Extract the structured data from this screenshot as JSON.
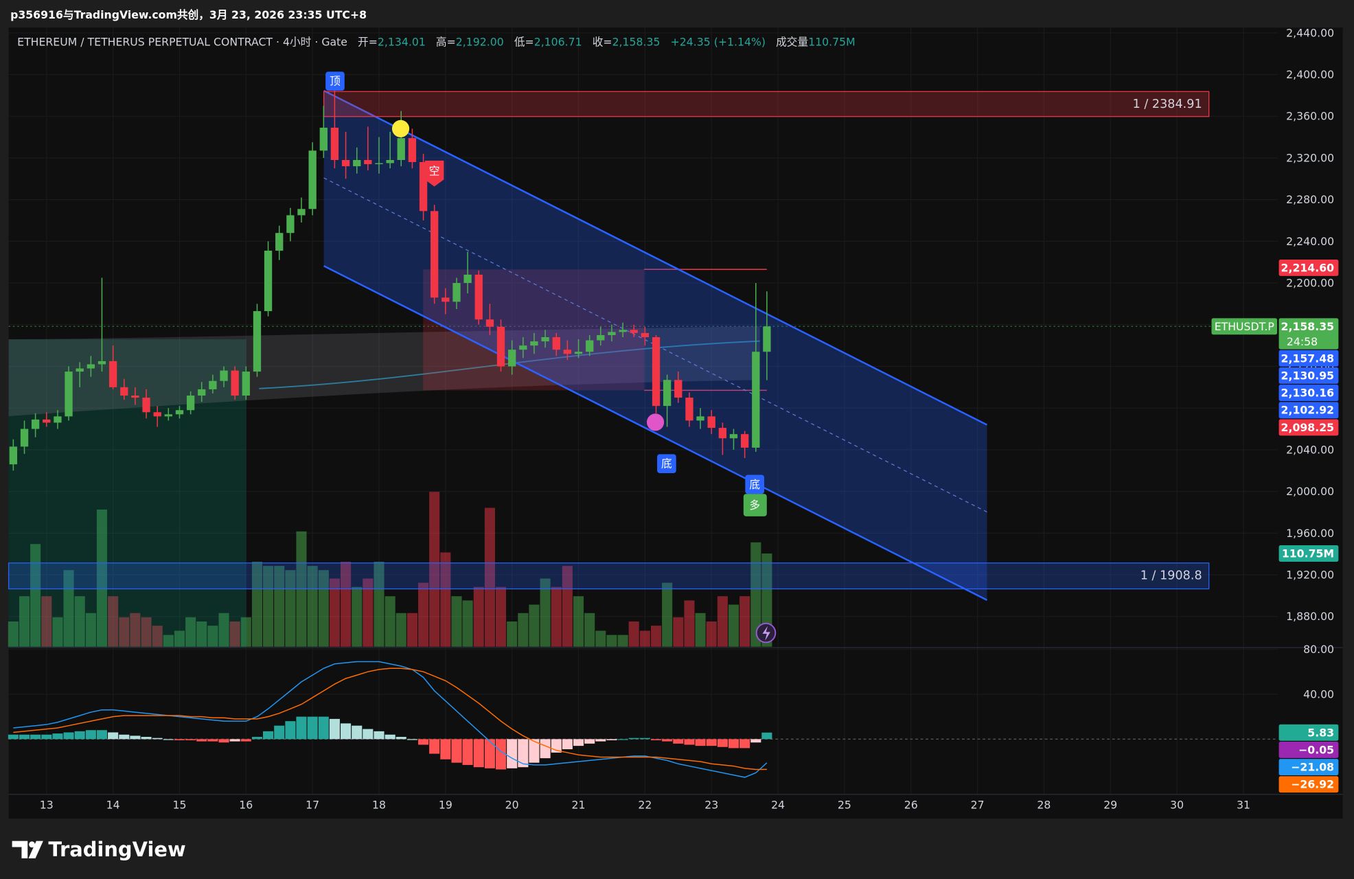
{
  "chart_data": {
    "type": "candlestick",
    "header": "p356916与TradingView.com共创，3月 23, 2026 23:35 UTC+8",
    "title": "ETHEREUM / TETHERUS PERPETUAL CONTRACT · 4小时 · Gate",
    "legend": [
      {
        "label": "开=",
        "value": "2,134.01"
      },
      {
        "label": "高=",
        "value": "2,192.00"
      },
      {
        "label": "低=",
        "value": "2,106.71"
      },
      {
        "label": "收=",
        "value": "2,158.35"
      }
    ],
    "change": "+24.35 (+1.14%)",
    "volume_legend": {
      "label": "成交量",
      "value": "110.75M"
    },
    "up_color": "#4caf50",
    "down_color": "#f23645",
    "x": [
      12.5,
      12.667,
      12.833,
      13,
      13.167,
      13.333,
      13.5,
      13.667,
      13.833,
      14,
      14.167,
      14.333,
      14.5,
      14.667,
      14.833,
      15,
      15.167,
      15.333,
      15.5,
      15.667,
      15.833,
      16,
      16.167,
      16.333,
      16.5,
      16.667,
      16.833,
      17,
      17.167,
      17.333,
      17.5,
      17.667,
      17.833,
      18,
      18.167,
      18.333,
      18.5,
      18.667,
      18.833,
      19,
      19.167,
      19.333,
      19.5,
      19.667,
      19.833,
      20,
      20.167,
      20.333,
      20.5,
      20.667,
      20.833,
      21,
      21.167,
      21.333,
      21.5,
      21.667,
      21.833,
      22,
      22.167,
      22.333,
      22.5,
      22.667,
      22.833,
      23,
      23.167,
      23.333,
      23.5,
      23.667,
      23.833
    ],
    "xlim": [
      12.43,
      31.52
    ],
    "xticks": [
      13,
      14,
      15,
      16,
      17,
      18,
      19,
      20,
      21,
      22,
      23,
      24,
      25,
      26,
      27,
      28,
      29,
      30,
      31
    ],
    "ohlc": [
      [
        2026,
        2050,
        2020,
        2043
      ],
      [
        2043,
        2068,
        2036,
        2060
      ],
      [
        2060,
        2075,
        2052,
        2069
      ],
      [
        2069,
        2076,
        2062,
        2066
      ],
      [
        2066,
        2078,
        2060,
        2072
      ],
      [
        2072,
        2120,
        2068,
        2115
      ],
      [
        2115,
        2124,
        2100,
        2118
      ],
      [
        2118,
        2130,
        2110,
        2122
      ],
      [
        2122,
        2205,
        2115,
        2125
      ],
      [
        2125,
        2140,
        2098,
        2100
      ],
      [
        2100,
        2108,
        2088,
        2092
      ],
      [
        2092,
        2100,
        2083,
        2090
      ],
      [
        2090,
        2098,
        2070,
        2076
      ],
      [
        2076,
        2082,
        2062,
        2072
      ],
      [
        2072,
        2080,
        2068,
        2074
      ],
      [
        2074,
        2082,
        2070,
        2078
      ],
      [
        2078,
        2096,
        2074,
        2092
      ],
      [
        2092,
        2105,
        2086,
        2098
      ],
      [
        2098,
        2112,
        2094,
        2106
      ],
      [
        2106,
        2120,
        2100,
        2116
      ],
      [
        2116,
        2120,
        2088,
        2092
      ],
      [
        2092,
        2120,
        2088,
        2115
      ],
      [
        2115,
        2180,
        2110,
        2173
      ],
      [
        2173,
        2240,
        2168,
        2231
      ],
      [
        2231,
        2255,
        2222,
        2248
      ],
      [
        2248,
        2272,
        2240,
        2265
      ],
      [
        2265,
        2282,
        2258,
        2271
      ],
      [
        2271,
        2335,
        2265,
        2327
      ],
      [
        2327,
        2370,
        2320,
        2349
      ],
      [
        2349,
        2385,
        2310,
        2318
      ],
      [
        2318,
        2345,
        2300,
        2312
      ],
      [
        2312,
        2330,
        2305,
        2318
      ],
      [
        2318,
        2350,
        2308,
        2314
      ],
      [
        2314,
        2340,
        2305,
        2315
      ],
      [
        2315,
        2345,
        2310,
        2318
      ],
      [
        2318,
        2365,
        2312,
        2339
      ],
      [
        2339,
        2348,
        2310,
        2316
      ],
      [
        2316,
        2324,
        2260,
        2269
      ],
      [
        2269,
        2275,
        2180,
        2186
      ],
      [
        2186,
        2195,
        2170,
        2182
      ],
      [
        2182,
        2205,
        2175,
        2200
      ],
      [
        2200,
        2230,
        2190,
        2208
      ],
      [
        2208,
        2212,
        2160,
        2165
      ],
      [
        2165,
        2180,
        2150,
        2158
      ],
      [
        2158,
        2165,
        2115,
        2120
      ],
      [
        2120,
        2145,
        2112,
        2136
      ],
      [
        2136,
        2148,
        2128,
        2140
      ],
      [
        2140,
        2152,
        2132,
        2144
      ],
      [
        2144,
        2155,
        2138,
        2148
      ],
      [
        2148,
        2152,
        2130,
        2136
      ],
      [
        2136,
        2145,
        2126,
        2132
      ],
      [
        2132,
        2146,
        2128,
        2134
      ],
      [
        2134,
        2150,
        2130,
        2145
      ],
      [
        2145,
        2158,
        2140,
        2150
      ],
      [
        2150,
        2160,
        2144,
        2153
      ],
      [
        2153,
        2162,
        2148,
        2155
      ],
      [
        2155,
        2160,
        2148,
        2152
      ],
      [
        2152,
        2158,
        2140,
        2148
      ],
      [
        2148,
        2150,
        2075,
        2082
      ],
      [
        2082,
        2112,
        2062,
        2107
      ],
      [
        2107,
        2115,
        2085,
        2090
      ],
      [
        2090,
        2095,
        2062,
        2068
      ],
      [
        2068,
        2080,
        2060,
        2072
      ],
      [
        2072,
        2078,
        2055,
        2061
      ],
      [
        2061,
        2066,
        2035,
        2051
      ],
      [
        2051,
        2060,
        2040,
        2055
      ],
      [
        2055,
        2058,
        2032,
        2042
      ],
      [
        2042,
        2200,
        2038,
        2134
      ],
      [
        2134.01,
        2192,
        2106.71,
        2158.35
      ]
    ],
    "ylim": [
      1851,
      2445
    ],
    "yticks": [
      {
        "value": 2440,
        "label": "2,440.00"
      },
      {
        "value": 2400,
        "label": "2,400.00"
      },
      {
        "value": 2360,
        "label": "2,360.00"
      },
      {
        "value": 2320,
        "label": "2,320.00"
      },
      {
        "value": 2280,
        "label": "2,280.00"
      },
      {
        "value": 2240,
        "label": "2,240.00"
      },
      {
        "value": 2200,
        "label": "2,200.00"
      },
      {
        "value": 2160,
        "label": "2,160.00"
      },
      {
        "value": 2120,
        "label": "2,120.00"
      },
      {
        "value": 2080,
        "label": "2,080.00"
      },
      {
        "value": 2040,
        "label": "2,040.00"
      },
      {
        "value": 2000,
        "label": "2,000.00"
      },
      {
        "value": 1960,
        "label": "1,960.00"
      },
      {
        "value": 1920,
        "label": "1,920.00"
      },
      {
        "value": 1880,
        "label": "1,880.00"
      }
    ],
    "price_badges": [
      {
        "value": 2214.6,
        "label": "2,214.60",
        "color": "#f23645"
      },
      {
        "value": 2158.35,
        "label": "2,158.35",
        "name": "ETHUSDT.P",
        "countdown": "24:58",
        "color": "#4caf50"
      },
      {
        "value": 2157.48,
        "label": "2,157.48",
        "color": "#2962ff"
      },
      {
        "value": 2130.95,
        "label": "2,130.95",
        "color": "#2962ff"
      },
      {
        "value": 2130.16,
        "label": "2,130.16",
        "color": "#2962ff"
      },
      {
        "value": 2102.92,
        "label": "2,102.92",
        "color": "#2962ff"
      },
      {
        "value": 2098.25,
        "label": "2,098.25",
        "color": "#f23645"
      }
    ],
    "volume": {
      "values": [
        30,
        60,
        122,
        60,
        35,
        91,
        60,
        40,
        163,
        60,
        35,
        40,
        35,
        25,
        14,
        19,
        35,
        30,
        25,
        40,
        30,
        35,
        101,
        96,
        96,
        91,
        137,
        96,
        91,
        81,
        101,
        71,
        81,
        101,
        60,
        40,
        40,
        76,
        184,
        112,
        60,
        55,
        71,
        165,
        71,
        30,
        40,
        50,
        81,
        71,
        96,
        60,
        40,
        19,
        14,
        14,
        30,
        19,
        25,
        76,
        35,
        55,
        40,
        30,
        60,
        50,
        60,
        124,
        110.75
      ],
      "last": {
        "value": 110.75,
        "label": "110.75M"
      },
      "badge_color": "#22ab94"
    },
    "macd": {
      "ylim": [
        -49.2,
        81.5
      ],
      "yticks": [
        {
          "value": 80,
          "label": "80.00"
        },
        {
          "value": 40,
          "label": "40.00"
        }
      ],
      "histogram": {
        "colors": [
          "#26a69a",
          "#b2dfdb",
          "#ff5252",
          "#ffcdd2"
        ],
        "values": [
          4,
          4,
          4,
          4,
          5,
          6,
          7,
          8,
          8,
          6,
          4,
          3,
          2,
          1,
          0,
          -1,
          -1,
          -2,
          -2,
          -3,
          -2,
          -2,
          2,
          7,
          12,
          16,
          20,
          20,
          20,
          18,
          14,
          12,
          9,
          7,
          4,
          2,
          0,
          -5,
          -13,
          -18,
          -21,
          -23,
          -25,
          -26,
          -27,
          -26,
          -25,
          -21,
          -17,
          -12,
          -9,
          -6,
          -4,
          -2,
          -1,
          0,
          1,
          1,
          -1,
          -2,
          -4,
          -5,
          -6,
          -6,
          -7,
          -8,
          -8,
          -3,
          5.83
        ]
      },
      "macd_line": {
        "color": "#2196f3",
        "values": [
          10,
          11,
          12,
          13,
          15,
          18,
          21,
          24,
          26,
          26,
          25,
          24,
          23,
          22,
          21,
          20,
          19,
          18,
          17,
          16,
          16,
          16,
          20,
          27,
          35,
          43,
          51,
          57,
          63,
          67,
          68,
          69,
          69,
          69,
          67,
          65,
          62,
          55,
          43,
          34,
          25,
          16,
          7,
          -2,
          -11,
          -17,
          -22,
          -23,
          -23,
          -22,
          -21,
          -20,
          -19,
          -18,
          -17,
          -16,
          -15,
          -15,
          -17,
          -19,
          -22,
          -24,
          -26,
          -28,
          -30,
          -32,
          -34,
          -30,
          -21.08
        ]
      },
      "signal_line": {
        "color": "#ff6d00",
        "values": [
          6,
          7,
          8,
          9,
          10,
          12,
          14,
          16,
          18,
          20,
          21,
          21,
          21,
          21,
          21,
          21,
          20,
          20,
          19,
          19,
          18,
          18,
          18,
          20,
          23,
          27,
          31,
          37,
          43,
          49,
          54,
          57,
          60,
          62,
          63,
          63,
          62,
          60,
          56,
          52,
          46,
          39,
          32,
          24,
          16,
          9,
          3,
          -2,
          -6,
          -10,
          -12,
          -14,
          -15,
          -16,
          -16,
          -16,
          -16,
          -16,
          -16,
          -17,
          -18,
          -19,
          -20,
          -22,
          -23,
          -24,
          -26,
          -27,
          -26.92
        ]
      },
      "badges": [
        {
          "value": 5.83,
          "label": "5.83",
          "color": "#22ab94"
        },
        {
          "value": -0.05,
          "label": "−0.05",
          "color": "#9c27b0"
        },
        {
          "value": -21.08,
          "label": "−21.08",
          "color": "#2196f3"
        },
        {
          "value": -26.92,
          "label": "−26.92",
          "color": "#ff6d00"
        }
      ]
    },
    "annotations": {
      "resistance": "1 / 2384.91",
      "support": "1 / 1908.8",
      "top": "顶",
      "short": "空",
      "bottoms": [
        "底",
        "底"
      ],
      "long": "多"
    },
    "brand": "TradingView"
  }
}
